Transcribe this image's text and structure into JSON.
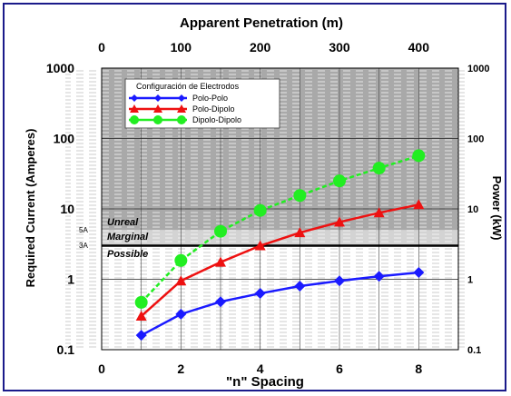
{
  "chart_data": {
    "type": "line",
    "title": "",
    "xlabel": "\"n\" Spacing",
    "x2label": "Apparent Penetration (m)",
    "ylabel": "Required Current (Amperes)",
    "y2label": "Power (kW)",
    "x_ticks": [
      "0",
      "2",
      "4",
      "6",
      "8"
    ],
    "x2_ticks": [
      "0",
      "100",
      "200",
      "300",
      "400"
    ],
    "y_ticks": [
      "0.1",
      "1",
      "10",
      "100",
      "1000"
    ],
    "y2_ticks": [
      "0.1",
      "1",
      "10",
      "100",
      "1000"
    ],
    "xlim": [
      0,
      9
    ],
    "ylim": [
      0.1,
      1000
    ],
    "y_scale": "log",
    "legend": {
      "title": "Configuración de Electrodos",
      "placement": "top-left"
    },
    "zones": [
      {
        "label": "Unreal",
        "side_label": "5A",
        "from": 5,
        "to": 1000,
        "color": "#a9a9a9"
      },
      {
        "label": "Marginal",
        "side_label": "",
        "from": 3,
        "to": 5,
        "color": "#d3d3d3"
      },
      {
        "label": "Possible",
        "side_label": "3A",
        "from": 0.1,
        "to": 3,
        "color": "#ffffff"
      }
    ],
    "threshold": 3,
    "series": [
      {
        "name": "Polo-Polo",
        "color": "#1a1aff",
        "marker": "diamond",
        "x": [
          1,
          2,
          3,
          4,
          5,
          6,
          7,
          8
        ],
        "values": [
          0.16,
          0.32,
          0.48,
          0.63,
          0.8,
          0.95,
          1.1,
          1.25
        ]
      },
      {
        "name": "Polo-Dipolo",
        "color": "#ee1111",
        "marker": "triangle",
        "x": [
          1,
          2,
          3,
          4,
          5,
          6,
          7,
          8
        ],
        "values": [
          0.3,
          0.95,
          1.75,
          3.0,
          4.6,
          6.5,
          8.8,
          11.5
        ]
      },
      {
        "name": "Dipolo-Dipolo",
        "color": "#22ee22",
        "marker": "circle",
        "x": [
          1,
          2,
          3,
          4,
          5,
          6,
          7,
          8
        ],
        "values": [
          0.47,
          1.85,
          4.8,
          9.5,
          15.5,
          25,
          38,
          57
        ]
      }
    ]
  }
}
